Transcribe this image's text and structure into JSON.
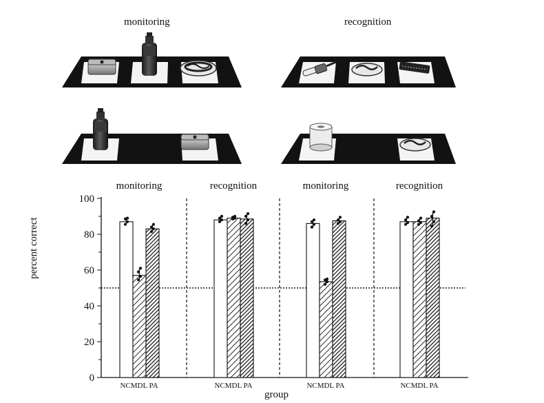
{
  "figure": {
    "panel_titles": [
      "monitoring",
      "recognition"
    ]
  },
  "chart_data": {
    "type": "bar",
    "ylabel": "percent correct",
    "xlabel": "group",
    "ylim": [
      0,
      100
    ],
    "yticks": [
      0,
      20,
      40,
      60,
      80,
      100
    ],
    "chance_line": 50,
    "grid": false,
    "groups": [
      "NC",
      "MDL",
      "PA"
    ],
    "group_tick_text": "NCMDL PA",
    "panels": [
      {
        "title": "monitoring",
        "values": [
          87,
          57,
          83
        ]
      },
      {
        "title": "recognition",
        "values": [
          88,
          89,
          88.5
        ]
      },
      {
        "title": "monitoring",
        "values": [
          86,
          53.5,
          87.5
        ]
      },
      {
        "title": "recognition",
        "values": [
          87,
          87,
          89
        ]
      }
    ],
    "points": [
      [
        [
          85.5,
          87,
          88.5,
          89
        ],
        [
          54.5,
          56.5,
          59,
          61
        ],
        [
          81.5,
          83,
          84,
          85.5
        ]
      ],
      [
        [
          87,
          88,
          89,
          90
        ],
        [
          88.5,
          89,
          89.5,
          90
        ],
        [
          86,
          88,
          90,
          91.5
        ]
      ],
      [
        [
          84,
          85.5,
          87,
          88
        ],
        [
          52,
          53.5,
          54.5,
          55
        ],
        [
          86,
          87,
          88,
          89.5
        ]
      ],
      [
        [
          85.5,
          86.5,
          88,
          89.5
        ],
        [
          85.5,
          86.5,
          87.5,
          89
        ],
        [
          84.5,
          87,
          90,
          92.5
        ]
      ]
    ],
    "colors": {
      "nc": "#ffffff",
      "mdl_hatch": "#2a2a2a",
      "pa_hatch": "#1c1c1c",
      "axis": "#111111",
      "tray": "#111111"
    }
  }
}
